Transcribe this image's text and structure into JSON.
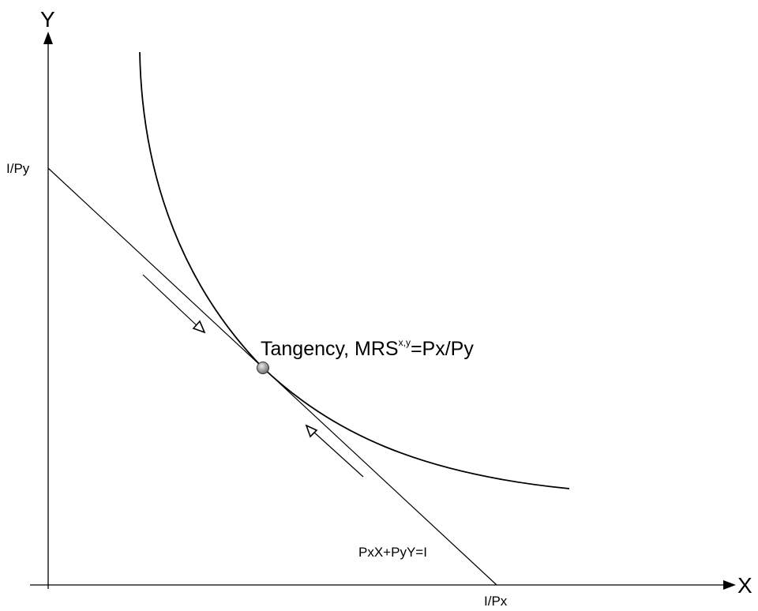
{
  "axes": {
    "y_label": "Y",
    "x_label": "X"
  },
  "intercepts": {
    "y_intercept_label": "I/Py",
    "x_intercept_label": "I/Px"
  },
  "budget_line": {
    "equation_label": "PxX+PyY=I"
  },
  "tangency": {
    "label_main": "Tangency, MRS",
    "label_superscript": "x,y",
    "label_rest": "=Px/Py"
  },
  "colors": {
    "line": "#000000",
    "point": "#8a8a8a"
  }
}
